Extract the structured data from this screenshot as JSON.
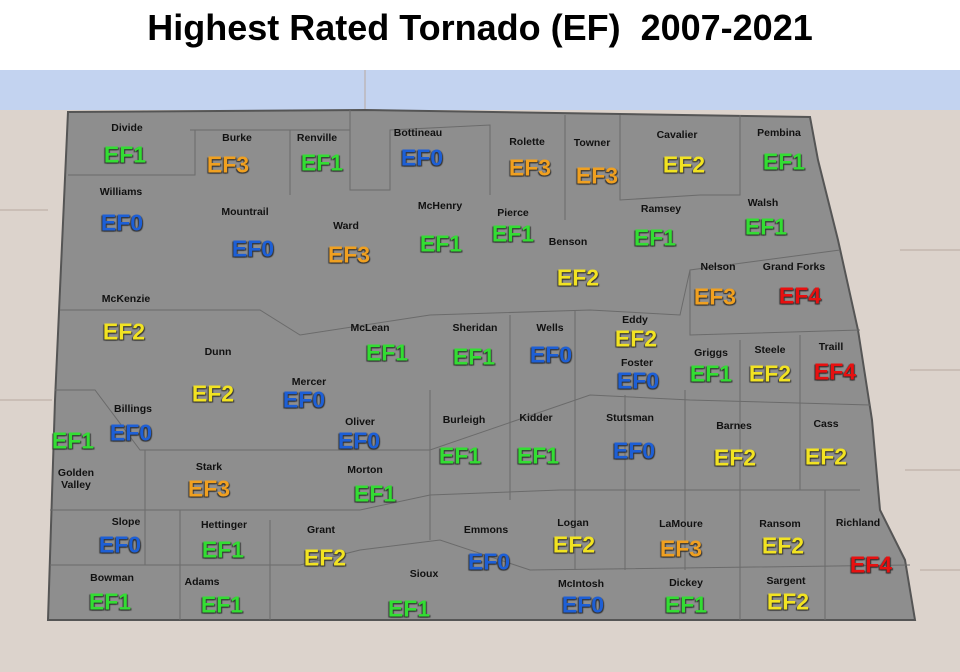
{
  "title": "Highest Rated Tornado (EF)  2007-2021",
  "counties": [
    {
      "name": "Divide",
      "rating": "EF1",
      "color": "#33dd33"
    },
    {
      "name": "Burke",
      "rating": "EF3",
      "color": "#f0a020"
    },
    {
      "name": "Renville",
      "rating": "EF1",
      "color": "#33dd33"
    },
    {
      "name": "Bottineau",
      "rating": "EF0",
      "color": "#1d5fd6"
    },
    {
      "name": "Rolette",
      "rating": "EF3",
      "color": "#f0a020"
    },
    {
      "name": "Towner",
      "rating": "EF3",
      "color": "#f0a020"
    },
    {
      "name": "Cavalier",
      "rating": "EF2",
      "color": "#f2e322"
    },
    {
      "name": "Pembina",
      "rating": "EF1",
      "color": "#33dd33"
    },
    {
      "name": "Williams",
      "rating": "EF0",
      "color": "#1d5fd6"
    },
    {
      "name": "Mountrail",
      "rating": "EF0",
      "color": "#1d5fd6"
    },
    {
      "name": "Ward",
      "rating": "EF3",
      "color": "#f0a020"
    },
    {
      "name": "McHenry",
      "rating": "EF1",
      "color": "#33dd33"
    },
    {
      "name": "Pierce",
      "rating": "EF1",
      "color": "#33dd33"
    },
    {
      "name": "Benson",
      "rating": "EF2",
      "color": "#f2e322"
    },
    {
      "name": "Ramsey",
      "rating": "EF1",
      "color": "#33dd33"
    },
    {
      "name": "Walsh",
      "rating": "EF1",
      "color": "#33dd33"
    },
    {
      "name": "Nelson",
      "rating": "EF3",
      "color": "#f0a020"
    },
    {
      "name": "Grand Forks",
      "rating": "EF4",
      "color": "#e81010"
    },
    {
      "name": "McKenzie",
      "rating": "EF2",
      "color": "#f2e322"
    },
    {
      "name": "Dunn",
      "rating": "EF2",
      "color": "#f2e322"
    },
    {
      "name": "McLean",
      "rating": "EF1",
      "color": "#33dd33"
    },
    {
      "name": "Sheridan",
      "rating": "EF1",
      "color": "#33dd33"
    },
    {
      "name": "Wells",
      "rating": "EF0",
      "color": "#1d5fd6"
    },
    {
      "name": "Eddy",
      "rating": "EF2",
      "color": "#f2e322"
    },
    {
      "name": "Foster",
      "rating": "EF0",
      "color": "#1d5fd6"
    },
    {
      "name": "Griggs",
      "rating": "EF1",
      "color": "#33dd33"
    },
    {
      "name": "Steele",
      "rating": "EF2",
      "color": "#f2e322"
    },
    {
      "name": "Traill",
      "rating": "EF4",
      "color": "#e81010"
    },
    {
      "name": "Mercer",
      "rating": "EF0",
      "color": "#1d5fd6"
    },
    {
      "name": "Billings",
      "rating": "EF0",
      "color": "#1d5fd6"
    },
    {
      "name": "Golden Valley",
      "rating": "EF1",
      "color": "#33dd33"
    },
    {
      "name": "Oliver",
      "rating": "EF0",
      "color": "#1d5fd6"
    },
    {
      "name": "Burleigh",
      "rating": "EF1",
      "color": "#33dd33"
    },
    {
      "name": "Kidder",
      "rating": "EF1",
      "color": "#33dd33"
    },
    {
      "name": "Stutsman",
      "rating": "EF0",
      "color": "#1d5fd6"
    },
    {
      "name": "Barnes",
      "rating": "EF2",
      "color": "#f2e322"
    },
    {
      "name": "Cass",
      "rating": "EF2",
      "color": "#f2e322"
    },
    {
      "name": "Stark",
      "rating": "EF3",
      "color": "#f0a020"
    },
    {
      "name": "Morton",
      "rating": "EF1",
      "color": "#33dd33"
    },
    {
      "name": "Slope",
      "rating": "EF0",
      "color": "#1d5fd6"
    },
    {
      "name": "Hettinger",
      "rating": "EF1",
      "color": "#33dd33"
    },
    {
      "name": "Grant",
      "rating": "EF2",
      "color": "#f2e322"
    },
    {
      "name": "Emmons",
      "rating": "EF0",
      "color": "#1d5fd6"
    },
    {
      "name": "Logan",
      "rating": "EF2",
      "color": "#f2e322"
    },
    {
      "name": "LaMoure",
      "rating": "EF3",
      "color": "#f0a020"
    },
    {
      "name": "Ransom",
      "rating": "EF2",
      "color": "#f2e322"
    },
    {
      "name": "Richland",
      "rating": "EF4",
      "color": "#e81010"
    },
    {
      "name": "Bowman",
      "rating": "EF1",
      "color": "#33dd33"
    },
    {
      "name": "Adams",
      "rating": "EF1",
      "color": "#33dd33"
    },
    {
      "name": "Sioux",
      "rating": "EF1",
      "color": "#33dd33"
    },
    {
      "name": "McIntosh",
      "rating": "EF0",
      "color": "#1d5fd6"
    },
    {
      "name": "Dickey",
      "rating": "EF1",
      "color": "#33dd33"
    },
    {
      "name": "Sargent",
      "rating": "EF2",
      "color": "#f2e322"
    }
  ]
}
